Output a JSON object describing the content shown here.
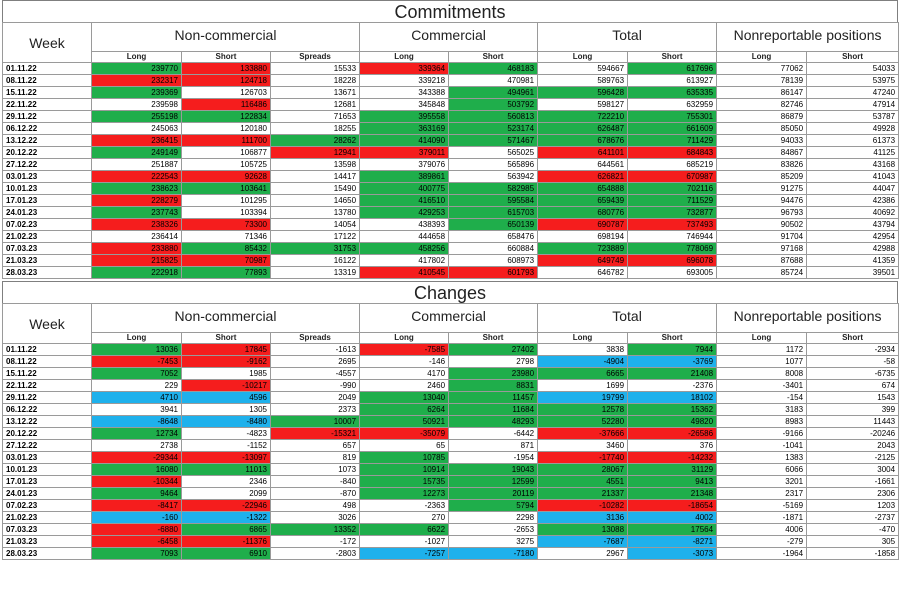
{
  "commitments": {
    "title": "Commitments",
    "week_label": "Week",
    "groups": {
      "noncommercial": "Non-commercial",
      "commercial": "Commercial",
      "total": "Total",
      "nonreportable": "Nonreportable positions"
    },
    "sub": {
      "long": "Long",
      "short": "Short",
      "spreads": "Spreads"
    },
    "rows": [
      {
        "date": "01.11.22",
        "ncl": [
          "239770",
          "g"
        ],
        "ncs": [
          "133880",
          "r"
        ],
        "spr": [
          "15533",
          "w"
        ],
        "cl": [
          "339364",
          "r"
        ],
        "cs": [
          "468183",
          "g"
        ],
        "tl": [
          "594667",
          "w"
        ],
        "ts": [
          "617696",
          "g"
        ],
        "nrl": "77062",
        "nrs": "54033"
      },
      {
        "date": "08.11.22",
        "ncl": [
          "232317",
          "r"
        ],
        "ncs": [
          "124718",
          "r"
        ],
        "spr": [
          "18228",
          "w"
        ],
        "cl": [
          "339218",
          "w"
        ],
        "cs": [
          "470981",
          "w"
        ],
        "tl": [
          "589763",
          "w"
        ],
        "ts": [
          "613927",
          "w"
        ],
        "nrl": "78139",
        "nrs": "53975"
      },
      {
        "date": "15.11.22",
        "ncl": [
          "239369",
          "g"
        ],
        "ncs": [
          "126703",
          "w"
        ],
        "spr": [
          "13671",
          "w"
        ],
        "cl": [
          "343388",
          "w"
        ],
        "cs": [
          "494961",
          "g"
        ],
        "tl": [
          "596428",
          "g"
        ],
        "ts": [
          "635335",
          "g"
        ],
        "nrl": "86147",
        "nrs": "47240"
      },
      {
        "date": "22.11.22",
        "ncl": [
          "239598",
          "w"
        ],
        "ncs": [
          "116486",
          "r"
        ],
        "spr": [
          "12681",
          "w"
        ],
        "cl": [
          "345848",
          "w"
        ],
        "cs": [
          "503792",
          "g"
        ],
        "tl": [
          "598127",
          "w"
        ],
        "ts": [
          "632959",
          "w"
        ],
        "nrl": "82746",
        "nrs": "47914"
      },
      {
        "date": "29.11.22",
        "ncl": [
          "255198",
          "g"
        ],
        "ncs": [
          "122834",
          "g"
        ],
        "spr": [
          "71653",
          "w"
        ],
        "cl": [
          "395558",
          "g"
        ],
        "cs": [
          "560813",
          "g"
        ],
        "tl": [
          "722210",
          "g"
        ],
        "ts": [
          "755301",
          "g"
        ],
        "nrl": "86879",
        "nrs": "53787"
      },
      {
        "date": "06.12.22",
        "ncl": [
          "245063",
          "w"
        ],
        "ncs": [
          "120180",
          "w"
        ],
        "spr": [
          "18255",
          "w"
        ],
        "cl": [
          "363169",
          "g"
        ],
        "cs": [
          "523174",
          "g"
        ],
        "tl": [
          "626487",
          "g"
        ],
        "ts": [
          "661609",
          "g"
        ],
        "nrl": "85050",
        "nrs": "49928"
      },
      {
        "date": "13.12.22",
        "ncl": [
          "236415",
          "r"
        ],
        "ncs": [
          "111700",
          "r"
        ],
        "spr": [
          "28262",
          "g"
        ],
        "cl": [
          "414090",
          "g"
        ],
        "cs": [
          "571467",
          "g"
        ],
        "tl": [
          "678676",
          "g"
        ],
        "ts": [
          "711429",
          "g"
        ],
        "nrl": "94033",
        "nrs": "61373"
      },
      {
        "date": "20.12.22",
        "ncl": [
          "249149",
          "g"
        ],
        "ncs": [
          "106877",
          "w"
        ],
        "spr": [
          "12941",
          "r"
        ],
        "cl": [
          "379011",
          "r"
        ],
        "cs": [
          "565025",
          "w"
        ],
        "tl": [
          "641101",
          "r"
        ],
        "ts": [
          "684843",
          "r"
        ],
        "nrl": "84867",
        "nrs": "41125"
      },
      {
        "date": "27.12.22",
        "ncl": [
          "251887",
          "w"
        ],
        "ncs": [
          "105725",
          "w"
        ],
        "spr": [
          "13598",
          "w"
        ],
        "cl": [
          "379076",
          "w"
        ],
        "cs": [
          "565896",
          "w"
        ],
        "tl": [
          "644561",
          "w"
        ],
        "ts": [
          "685219",
          "w"
        ],
        "nrl": "83826",
        "nrs": "43168"
      },
      {
        "date": "03.01.23",
        "ncl": [
          "222543",
          "r"
        ],
        "ncs": [
          "92628",
          "r"
        ],
        "spr": [
          "14417",
          "w"
        ],
        "cl": [
          "389861",
          "g"
        ],
        "cs": [
          "563942",
          "w"
        ],
        "tl": [
          "626821",
          "r"
        ],
        "ts": [
          "670987",
          "r"
        ],
        "nrl": "85209",
        "nrs": "41043"
      },
      {
        "date": "10.01.23",
        "ncl": [
          "238623",
          "g"
        ],
        "ncs": [
          "103641",
          "g"
        ],
        "spr": [
          "15490",
          "w"
        ],
        "cl": [
          "400775",
          "g"
        ],
        "cs": [
          "582985",
          "g"
        ],
        "tl": [
          "654888",
          "g"
        ],
        "ts": [
          "702116",
          "g"
        ],
        "nrl": "91275",
        "nrs": "44047"
      },
      {
        "date": "17.01.23",
        "ncl": [
          "228279",
          "r"
        ],
        "ncs": [
          "101295",
          "w"
        ],
        "spr": [
          "14650",
          "w"
        ],
        "cl": [
          "416510",
          "g"
        ],
        "cs": [
          "595584",
          "g"
        ],
        "tl": [
          "659439",
          "g"
        ],
        "ts": [
          "711529",
          "g"
        ],
        "nrl": "94476",
        "nrs": "42386"
      },
      {
        "date": "24.01.23",
        "ncl": [
          "237743",
          "g"
        ],
        "ncs": [
          "103394",
          "w"
        ],
        "spr": [
          "13780",
          "w"
        ],
        "cl": [
          "429253",
          "g"
        ],
        "cs": [
          "615703",
          "g"
        ],
        "tl": [
          "680776",
          "g"
        ],
        "ts": [
          "732877",
          "g"
        ],
        "nrl": "96793",
        "nrs": "40692"
      },
      {
        "date": "07.02.23",
        "ncl": [
          "238326",
          "r"
        ],
        "ncs": [
          "73300",
          "r"
        ],
        "spr": [
          "14054",
          "w"
        ],
        "cl": [
          "438393",
          "w"
        ],
        "cs": [
          "650139",
          "g"
        ],
        "tl": [
          "690787",
          "r"
        ],
        "ts": [
          "737493",
          "r"
        ],
        "nrl": "90502",
        "nrs": "43794"
      },
      {
        "date": "21.02.23",
        "ncl": [
          "236414",
          "w"
        ],
        "ncs": [
          "71346",
          "w"
        ],
        "spr": [
          "17122",
          "w"
        ],
        "cl": [
          "444658",
          "w"
        ],
        "cs": [
          "658476",
          "w"
        ],
        "tl": [
          "698194",
          "w"
        ],
        "ts": [
          "746944",
          "w"
        ],
        "nrl": "91704",
        "nrs": "42954"
      },
      {
        "date": "07.03.23",
        "ncl": [
          "233880",
          "r"
        ],
        "ncs": [
          "85432",
          "g"
        ],
        "spr": [
          "31753",
          "g"
        ],
        "cl": [
          "458256",
          "g"
        ],
        "cs": [
          "660884",
          "w"
        ],
        "tl": [
          "723889",
          "g"
        ],
        "ts": [
          "778069",
          "g"
        ],
        "nrl": "97168",
        "nrs": "42988"
      },
      {
        "date": "21.03.23",
        "ncl": [
          "215825",
          "r"
        ],
        "ncs": [
          "70987",
          "r"
        ],
        "spr": [
          "16122",
          "w"
        ],
        "cl": [
          "417802",
          "w"
        ],
        "cs": [
          "608973",
          "w"
        ],
        "tl": [
          "649749",
          "r"
        ],
        "ts": [
          "696078",
          "r"
        ],
        "nrl": "87688",
        "nrs": "41359"
      },
      {
        "date": "28.03.23",
        "ncl": [
          "222918",
          "g"
        ],
        "ncs": [
          "77893",
          "g"
        ],
        "spr": [
          "13319",
          "w"
        ],
        "cl": [
          "410545",
          "r"
        ],
        "cs": [
          "601793",
          "r"
        ],
        "tl": [
          "646782",
          "w"
        ],
        "ts": [
          "693005",
          "w"
        ],
        "nrl": "85724",
        "nrs": "39501"
      }
    ]
  },
  "changes": {
    "title": "Changes",
    "week_label": "Week",
    "groups": {
      "noncommercial": "Non-commercial",
      "commercial": "Commercial",
      "total": "Total",
      "nonreportable": "Nonreportable positions"
    },
    "sub": {
      "long": "Long",
      "short": "Short",
      "spreads": "Spreads"
    },
    "rows": [
      {
        "date": "01.11.22",
        "ncl": [
          "13036",
          "g"
        ],
        "ncs": [
          "17845",
          "r"
        ],
        "spr": [
          "-1613",
          "w"
        ],
        "cl": [
          "-7585",
          "r"
        ],
        "cs": [
          "27402",
          "g"
        ],
        "tl": [
          "3838",
          "w"
        ],
        "ts": [
          "7944",
          "g"
        ],
        "nrl": "1172",
        "nrs": "-2934"
      },
      {
        "date": "08.11.22",
        "ncl": [
          "-7453",
          "r"
        ],
        "ncs": [
          "-9162",
          "r"
        ],
        "spr": [
          "2695",
          "w"
        ],
        "cl": [
          "-146",
          "w"
        ],
        "cs": [
          "2798",
          "w"
        ],
        "tl": [
          "-4904",
          "b"
        ],
        "ts": [
          "-3769",
          "b"
        ],
        "nrl": "1077",
        "nrs": "-58"
      },
      {
        "date": "15.11.22",
        "ncl": [
          "7052",
          "g"
        ],
        "ncs": [
          "1985",
          "w"
        ],
        "spr": [
          "-4557",
          "w"
        ],
        "cl": [
          "4170",
          "w"
        ],
        "cs": [
          "23980",
          "g"
        ],
        "tl": [
          "6665",
          "g"
        ],
        "ts": [
          "21408",
          "g"
        ],
        "nrl": "8008",
        "nrs": "-6735"
      },
      {
        "date": "22.11.22",
        "ncl": [
          "229",
          "w"
        ],
        "ncs": [
          "-10217",
          "r"
        ],
        "spr": [
          "-990",
          "w"
        ],
        "cl": [
          "2460",
          "w"
        ],
        "cs": [
          "8831",
          "g"
        ],
        "tl": [
          "1699",
          "w"
        ],
        "ts": [
          "-2376",
          "w"
        ],
        "nrl": "-3401",
        "nrs": "674"
      },
      {
        "date": "29.11.22",
        "ncl": [
          "4710",
          "b"
        ],
        "ncs": [
          "4596",
          "b"
        ],
        "spr": [
          "2049",
          "w"
        ],
        "cl": [
          "13040",
          "g"
        ],
        "cs": [
          "11457",
          "g"
        ],
        "tl": [
          "19799",
          "b"
        ],
        "ts": [
          "18102",
          "b"
        ],
        "nrl": "-154",
        "nrs": "1543"
      },
      {
        "date": "06.12.22",
        "ncl": [
          "3941",
          "w"
        ],
        "ncs": [
          "1305",
          "w"
        ],
        "spr": [
          "2373",
          "w"
        ],
        "cl": [
          "6264",
          "g"
        ],
        "cs": [
          "11684",
          "g"
        ],
        "tl": [
          "12578",
          "g"
        ],
        "ts": [
          "15362",
          "g"
        ],
        "nrl": "3183",
        "nrs": "399"
      },
      {
        "date": "13.12.22",
        "ncl": [
          "-8648",
          "b"
        ],
        "ncs": [
          "-8480",
          "b"
        ],
        "spr": [
          "10007",
          "g"
        ],
        "cl": [
          "50921",
          "g"
        ],
        "cs": [
          "48293",
          "g"
        ],
        "tl": [
          "52280",
          "g"
        ],
        "ts": [
          "49820",
          "g"
        ],
        "nrl": "8983",
        "nrs": "11443"
      },
      {
        "date": "20.12.22",
        "ncl": [
          "12734",
          "g"
        ],
        "ncs": [
          "-4823",
          "w"
        ],
        "spr": [
          "-15321",
          "r"
        ],
        "cl": [
          "-35079",
          "r"
        ],
        "cs": [
          "-6442",
          "w"
        ],
        "tl": [
          "-37666",
          "r"
        ],
        "ts": [
          "-26586",
          "r"
        ],
        "nrl": "-9166",
        "nrs": "-20246"
      },
      {
        "date": "27.12.22",
        "ncl": [
          "2738",
          "w"
        ],
        "ncs": [
          "-1152",
          "w"
        ],
        "spr": [
          "657",
          "w"
        ],
        "cl": [
          "65",
          "w"
        ],
        "cs": [
          "871",
          "w"
        ],
        "tl": [
          "3460",
          "w"
        ],
        "ts": [
          "376",
          "w"
        ],
        "nrl": "-1041",
        "nrs": "2043"
      },
      {
        "date": "03.01.23",
        "ncl": [
          "-29344",
          "r"
        ],
        "ncs": [
          "-13097",
          "r"
        ],
        "spr": [
          "819",
          "w"
        ],
        "cl": [
          "10785",
          "g"
        ],
        "cs": [
          "-1954",
          "w"
        ],
        "tl": [
          "-17740",
          "r"
        ],
        "ts": [
          "-14232",
          "r"
        ],
        "nrl": "1383",
        "nrs": "-2125"
      },
      {
        "date": "10.01.23",
        "ncl": [
          "16080",
          "g"
        ],
        "ncs": [
          "11013",
          "g"
        ],
        "spr": [
          "1073",
          "w"
        ],
        "cl": [
          "10914",
          "g"
        ],
        "cs": [
          "19043",
          "g"
        ],
        "tl": [
          "28067",
          "g"
        ],
        "ts": [
          "31129",
          "g"
        ],
        "nrl": "6066",
        "nrs": "3004"
      },
      {
        "date": "17.01.23",
        "ncl": [
          "-10344",
          "r"
        ],
        "ncs": [
          "2346",
          "w"
        ],
        "spr": [
          "-840",
          "w"
        ],
        "cl": [
          "15735",
          "g"
        ],
        "cs": [
          "12599",
          "g"
        ],
        "tl": [
          "4551",
          "g"
        ],
        "ts": [
          "9413",
          "g"
        ],
        "nrl": "3201",
        "nrs": "-1661"
      },
      {
        "date": "24.01.23",
        "ncl": [
          "9464",
          "g"
        ],
        "ncs": [
          "2099",
          "w"
        ],
        "spr": [
          "-870",
          "w"
        ],
        "cl": [
          "12273",
          "g"
        ],
        "cs": [
          "20119",
          "g"
        ],
        "tl": [
          "21337",
          "g"
        ],
        "ts": [
          "21348",
          "g"
        ],
        "nrl": "2317",
        "nrs": "2306"
      },
      {
        "date": "07.02.23",
        "ncl": [
          "-8417",
          "r"
        ],
        "ncs": [
          "-22946",
          "r"
        ],
        "spr": [
          "498",
          "w"
        ],
        "cl": [
          "-2363",
          "w"
        ],
        "cs": [
          "5794",
          "g"
        ],
        "tl": [
          "-10282",
          "r"
        ],
        "ts": [
          "-18654",
          "r"
        ],
        "nrl": "-5169",
        "nrs": "1203"
      },
      {
        "date": "21.02.23",
        "ncl": [
          "-160",
          "b"
        ],
        "ncs": [
          "-1322",
          "b"
        ],
        "spr": [
          "3026",
          "w"
        ],
        "cl": [
          "270",
          "w"
        ],
        "cs": [
          "2298",
          "w"
        ],
        "tl": [
          "3136",
          "b"
        ],
        "ts": [
          "4002",
          "b"
        ],
        "nrl": "-1871",
        "nrs": "-2737"
      },
      {
        "date": "07.03.23",
        "ncl": [
          "-6880",
          "r"
        ],
        "ncs": [
          "6865",
          "g"
        ],
        "spr": [
          "13352",
          "g"
        ],
        "cl": [
          "6622",
          "g"
        ],
        "cs": [
          "-2653",
          "w"
        ],
        "tl": [
          "13088",
          "g"
        ],
        "ts": [
          "17564",
          "g"
        ],
        "nrl": "4006",
        "nrs": "-470"
      },
      {
        "date": "21.03.23",
        "ncl": [
          "-6458",
          "r"
        ],
        "ncs": [
          "-11376",
          "r"
        ],
        "spr": [
          "-172",
          "w"
        ],
        "cl": [
          "-1027",
          "w"
        ],
        "cs": [
          "3275",
          "w"
        ],
        "tl": [
          "-7687",
          "b"
        ],
        "ts": [
          "-8271",
          "b"
        ],
        "nrl": "-279",
        "nrs": "305"
      },
      {
        "date": "28.03.23",
        "ncl": [
          "7093",
          "g"
        ],
        "ncs": [
          "6910",
          "g"
        ],
        "spr": [
          "-2803",
          "w"
        ],
        "cl": [
          "-7257",
          "b"
        ],
        "cs": [
          "-7180",
          "b"
        ],
        "tl": [
          "2967",
          "w"
        ],
        "ts": [
          "-3073",
          "b"
        ],
        "nrl": "-1964",
        "nrs": "-1858"
      }
    ]
  }
}
